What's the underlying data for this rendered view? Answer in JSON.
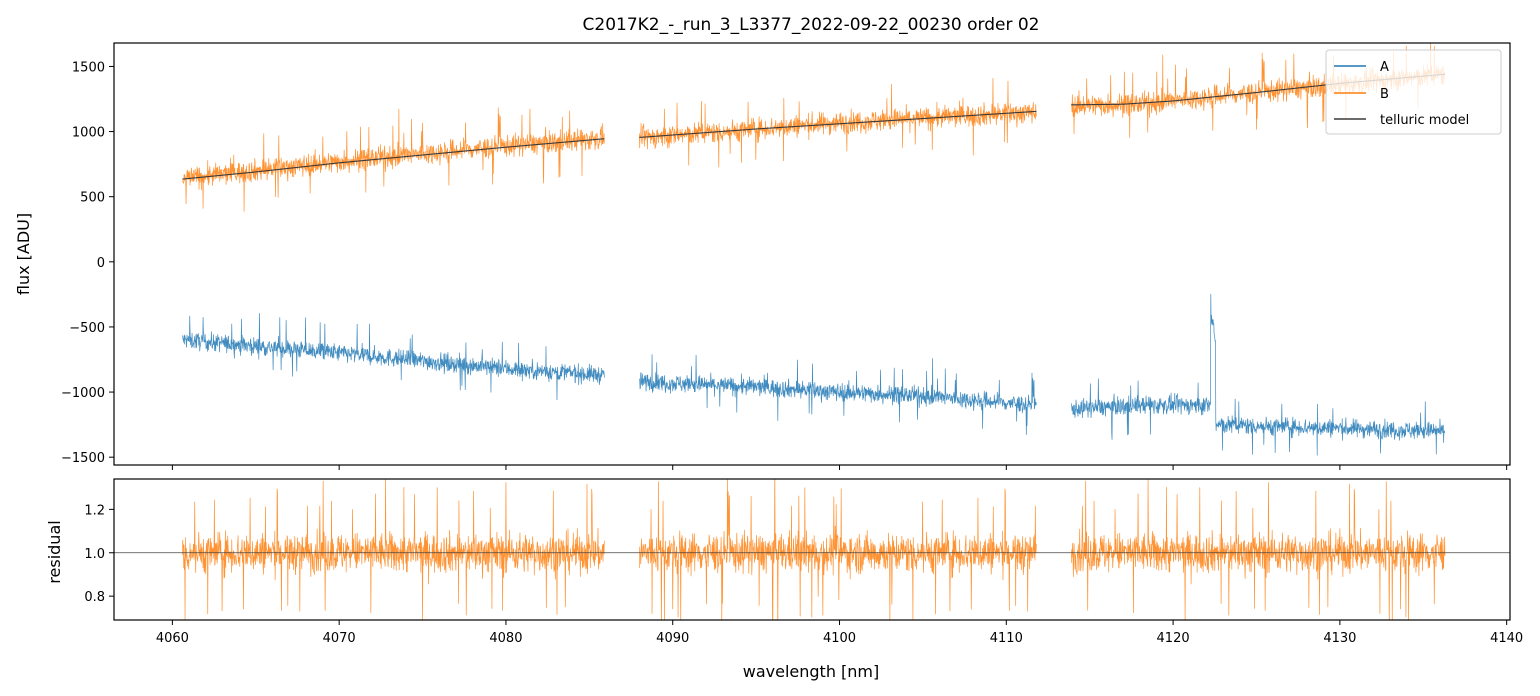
{
  "chart_data": {
    "type": "line",
    "title": "C2017K2_-_run_3_L3377_2022-09-22_00230  order 02",
    "colors": {
      "A": "#1f77b4",
      "B": "#ff7f0e",
      "model": "#3a3a3a",
      "axis": "#000000"
    },
    "panels": [
      {
        "id": "flux",
        "ylabel": "flux [ADU]",
        "xlim": [
          4056.5,
          4140.2
        ],
        "ylim": [
          -1560,
          1680
        ],
        "yticks": [
          1500,
          1000,
          500,
          0,
          -500,
          -1000,
          -1500
        ],
        "ytick_labels": [
          "1500",
          "1000",
          "500",
          "0",
          "−500",
          "−1000",
          "−1500"
        ],
        "segments": [
          [
            4060.6,
            4085.9
          ],
          [
            4088.0,
            4111.8
          ],
          [
            4113.9,
            4136.3
          ]
        ],
        "series": [
          {
            "name": "A",
            "noise": 90,
            "points": [
              [
                4060.6,
                -600
              ],
              [
                4070.0,
                -700
              ],
              [
                4080.0,
                -820
              ],
              [
                4085.9,
                -870
              ],
              [
                4088.0,
                -920
              ],
              [
                4095.0,
                -960
              ],
              [
                4100.0,
                -1000
              ],
              [
                4105.0,
                -1030
              ],
              [
                4111.8,
                -1100
              ],
              [
                4113.9,
                -1130
              ],
              [
                4118.0,
                -1100
              ],
              [
                4122.4,
                -1100
              ],
              [
                4122.5,
                -1250
              ],
              [
                4128.0,
                -1270
              ],
              [
                4136.3,
                -1300
              ]
            ]
          },
          {
            "name": "B",
            "noise": 110,
            "points": [
              [
                4060.6,
                640
              ],
              [
                4070.0,
                770
              ],
              [
                4080.0,
                890
              ],
              [
                4085.9,
                950
              ],
              [
                4088.0,
                950
              ],
              [
                4100.0,
                1070
              ],
              [
                4111.8,
                1150
              ],
              [
                4113.9,
                1200
              ],
              [
                4118.0,
                1210
              ],
              [
                4124.0,
                1290
              ],
              [
                4130.0,
                1360
              ],
              [
                4136.3,
                1440
              ]
            ]
          },
          {
            "name": "telluric model",
            "noise": 0,
            "points": [
              [
                4060.6,
                635
              ],
              [
                4065.0,
                690
              ],
              [
                4070.0,
                760
              ],
              [
                4075.0,
                820
              ],
              [
                4080.0,
                880
              ],
              [
                4085.9,
                945
              ],
              [
                4088.0,
                955
              ],
              [
                4095.0,
                1020
              ],
              [
                4100.0,
                1060
              ],
              [
                4105.0,
                1100
              ],
              [
                4111.8,
                1155
              ],
              [
                4113.9,
                1205
              ],
              [
                4117.0,
                1210
              ],
              [
                4120.0,
                1235
              ],
              [
                4125.0,
                1300
              ],
              [
                4130.0,
                1370
              ],
              [
                4136.3,
                1440
              ]
            ]
          }
        ]
      },
      {
        "id": "residual",
        "ylabel": "residual",
        "xlabel": "wavelength [nm]",
        "xlim": [
          4056.5,
          4140.2
        ],
        "ylim": [
          0.69,
          1.34
        ],
        "yticks": [
          1.2,
          1.0,
          0.8
        ],
        "ytick_labels": [
          "1.2",
          "1.0",
          "0.8"
        ],
        "xticks": [
          4060,
          4070,
          4080,
          4090,
          4100,
          4110,
          4120,
          4130,
          4140
        ],
        "xtick_labels": [
          "4060",
          "4070",
          "4080",
          "4090",
          "4100",
          "4110",
          "4120",
          "4130",
          "4140"
        ],
        "hline": 1.0,
        "series": [
          {
            "name": "B residual",
            "center": 1.0,
            "noise": 0.11
          }
        ]
      }
    ],
    "legend": {
      "location": "top-right",
      "entries": [
        {
          "label": "A"
        },
        {
          "label": "B"
        },
        {
          "label": "telluric model"
        }
      ]
    }
  }
}
